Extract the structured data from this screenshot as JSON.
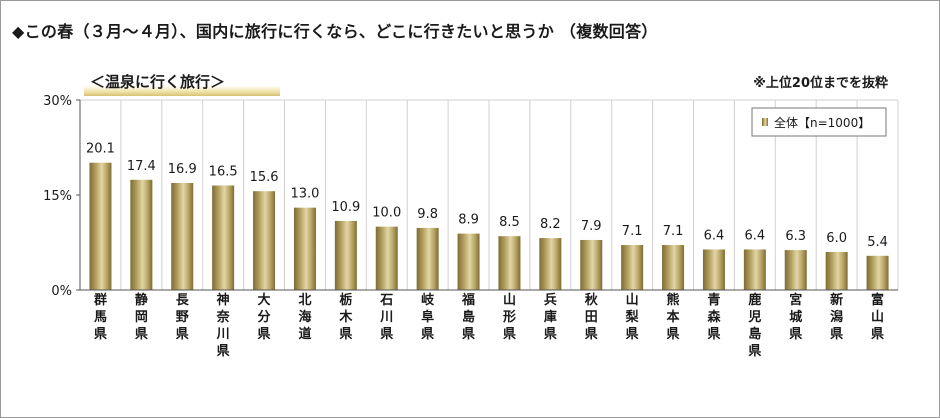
{
  "title": "◆この春（３月～４月）、国内に旅行に行くなら、どこに行きたいと思うか （複数回答）",
  "subtitle": "＜温泉に行く旅行＞",
  "note": "※上位20位までを抜粋",
  "colors": {
    "bar_light": "#e2d6a8",
    "bar_mid": "#b5a261",
    "bar_dark": "#7d6c34",
    "text": "#1a1a1a"
  },
  "chart_data": {
    "type": "bar",
    "title": "",
    "xlabel": "",
    "ylabel": "",
    "ylim": [
      0,
      30
    ],
    "yticks": [
      "0%",
      "15%",
      "30%"
    ],
    "legend": {
      "label": "全体【n=1000】",
      "placement": "top-right"
    },
    "categories": [
      "群馬県",
      "静岡県",
      "長野県",
      "神奈川県",
      "大分県",
      "北海道",
      "栃木県",
      "石川県",
      "岐阜県",
      "福島県",
      "山形県",
      "兵庫県",
      "秋田県",
      "山梨県",
      "熊本県",
      "青森県",
      "鹿児島県",
      "宮城県",
      "新潟県",
      "富山県"
    ],
    "series": [
      {
        "name": "全体【n=1000】",
        "values": [
          20.1,
          17.4,
          16.9,
          16.5,
          15.6,
          13.0,
          10.9,
          10.0,
          9.8,
          8.9,
          8.5,
          8.2,
          7.9,
          7.1,
          7.1,
          6.4,
          6.4,
          6.3,
          6.0,
          5.4
        ],
        "labels": [
          "20.1",
          "17.4",
          "16.9",
          "16.5",
          "15.6",
          "13.0",
          "10.9",
          "10.0",
          "9.8",
          "8.9",
          "8.5",
          "8.2",
          "7.9",
          "7.1",
          "7.1",
          "6.4",
          "6.4",
          "6.3",
          "6.0",
          "5.4"
        ]
      }
    ],
    "grid": "vertical separators"
  }
}
